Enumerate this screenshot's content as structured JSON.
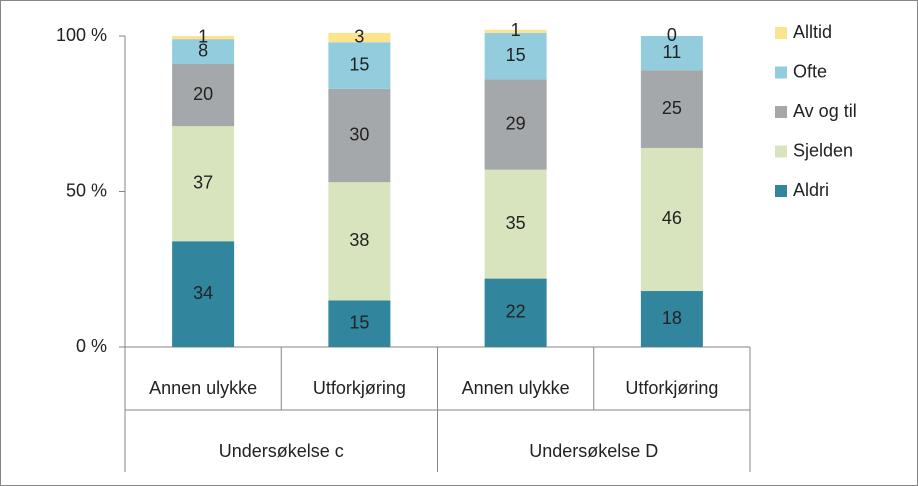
{
  "chart_data": {
    "type": "stacked_bar",
    "categories": [
      "Annen ulykke",
      "Utforkjøring",
      "Annen ulykke",
      "Utforkjøring"
    ],
    "groups": [
      "Undersøkelse c",
      "Undersøkelse D"
    ],
    "series": [
      {
        "name": "Aldri",
        "color": "#31859c",
        "values": [
          34,
          15,
          22,
          18
        ]
      },
      {
        "name": "Sjelden",
        "color": "#d7e4bd",
        "values": [
          37,
          38,
          35,
          46
        ]
      },
      {
        "name": "Av og til",
        "color": "#a5a8ab",
        "values": [
          20,
          30,
          29,
          25
        ]
      },
      {
        "name": "Ofte",
        "color": "#93cddd",
        "values": [
          8,
          15,
          15,
          11
        ]
      },
      {
        "name": "Alltid",
        "color": "#fde38e",
        "values": [
          1,
          3,
          1,
          0
        ]
      }
    ],
    "ylim": [
      0,
      100
    ],
    "yticks": [
      {
        "value": 0,
        "label": "0 %"
      },
      {
        "value": 50,
        "label": "50 %"
      },
      {
        "value": 100,
        "label": "100 %"
      }
    ],
    "grid": false,
    "legend": "right"
  }
}
